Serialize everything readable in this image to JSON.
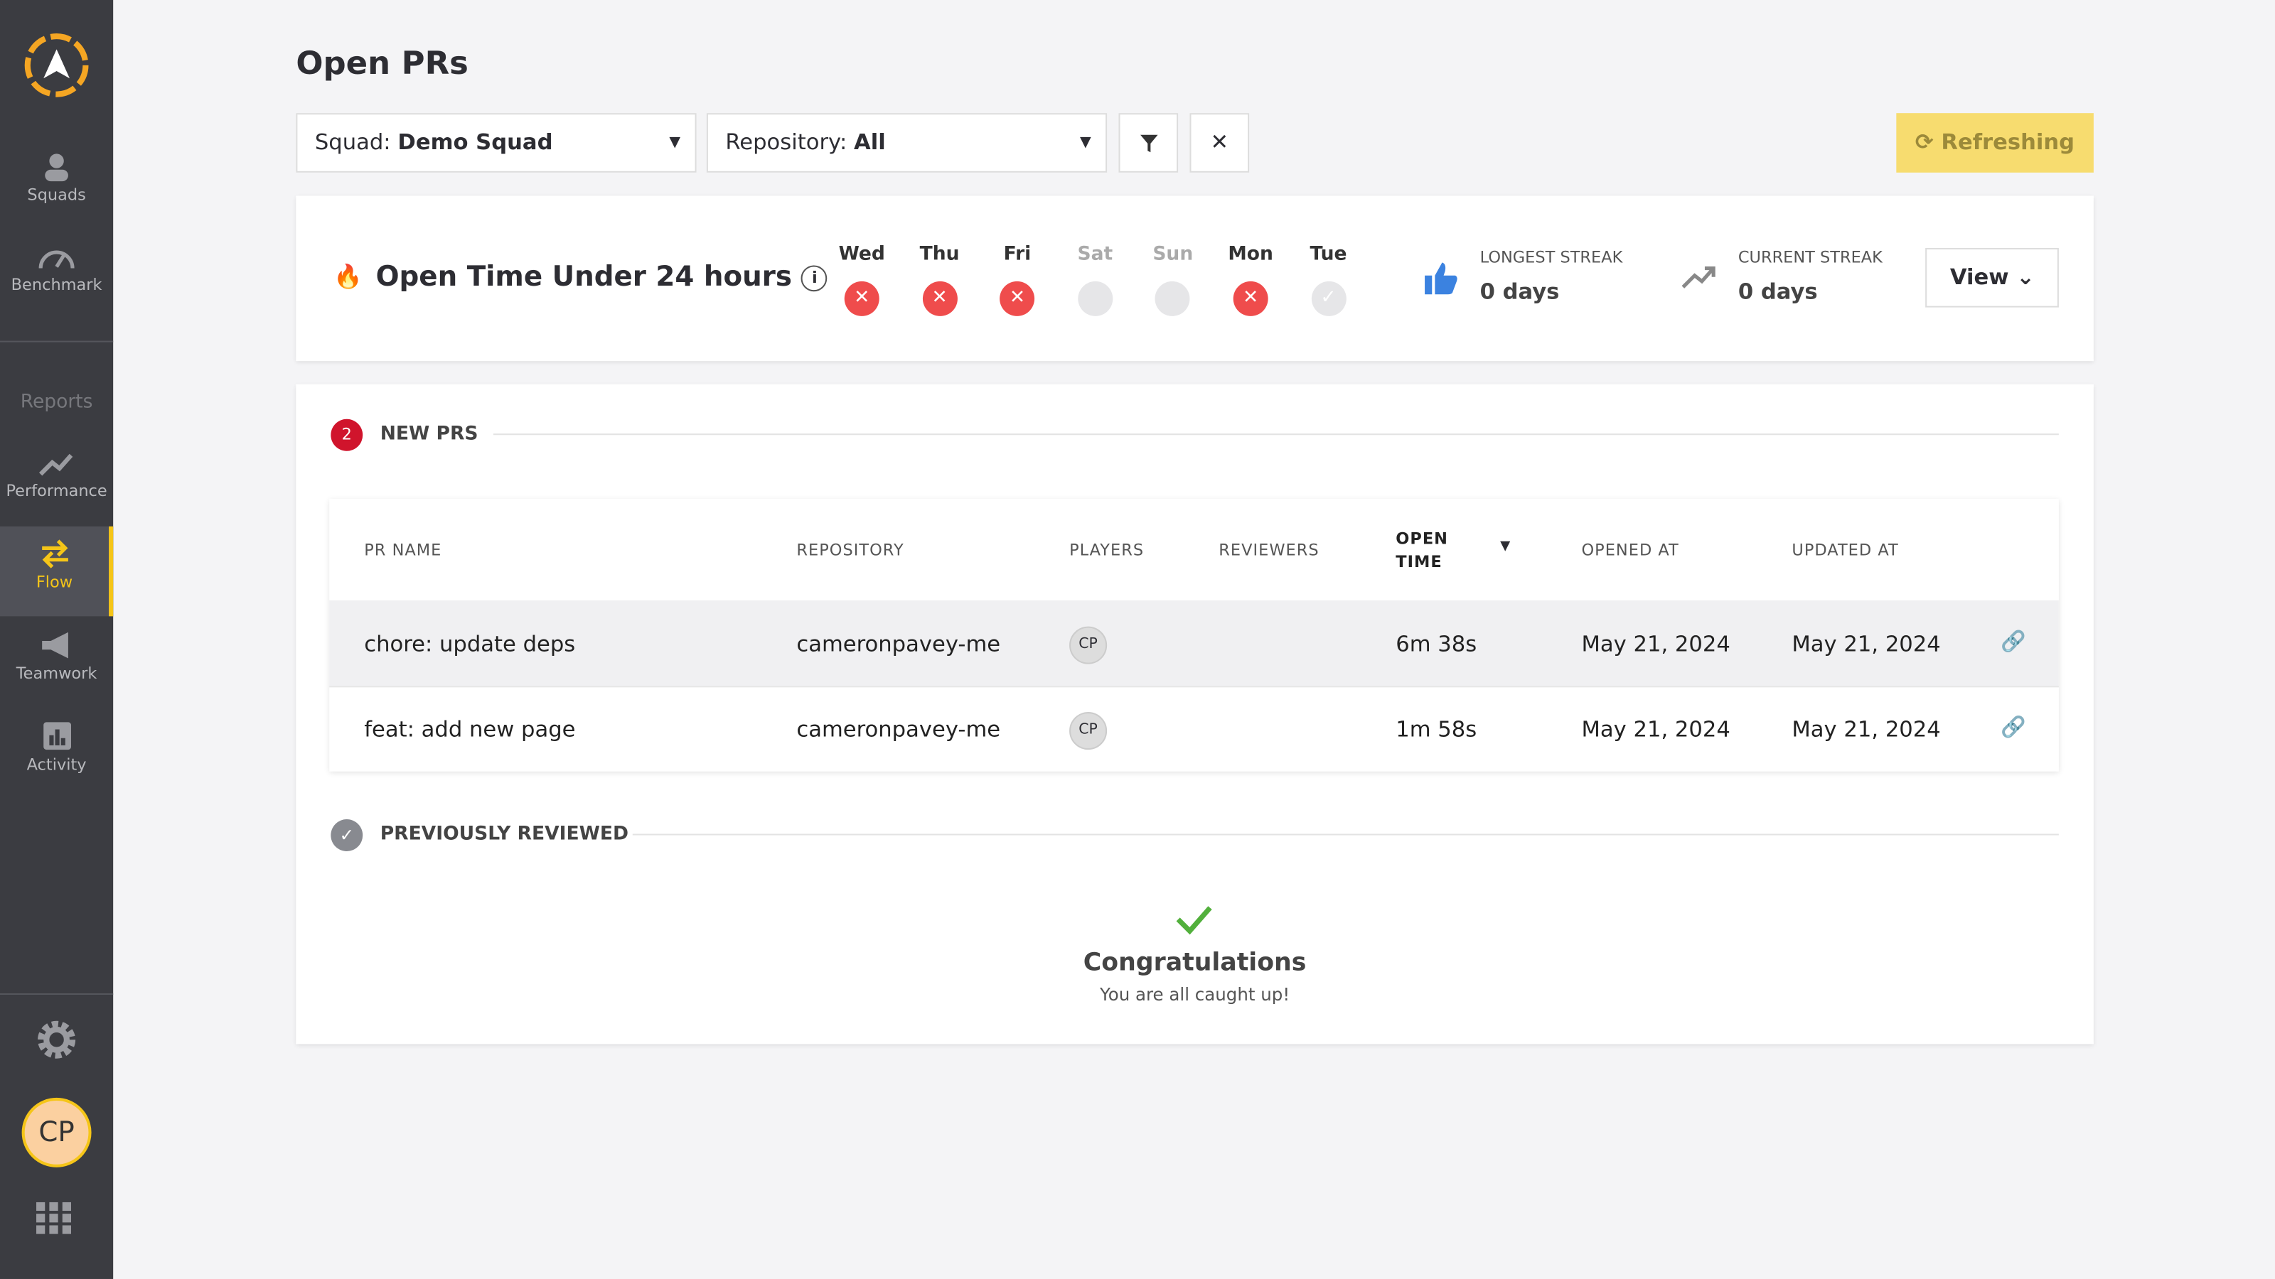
{
  "sidebar": {
    "nav": [
      "Squads",
      "Benchmark"
    ],
    "section": "Reports",
    "reports": [
      "Performance",
      "Flow",
      "Teamwork",
      "Activity"
    ],
    "active": "Flow",
    "avatar": "CP"
  },
  "header": {
    "title": "Open PRs"
  },
  "filters": {
    "squad_label": "Squad:",
    "squad_value": "Demo Squad",
    "repo_label": "Repository:",
    "repo_value": "All",
    "refresh": "Refreshing"
  },
  "streak": {
    "title": "Open Time Under 24 hours",
    "days": [
      {
        "day": "Wed",
        "status": "fail"
      },
      {
        "day": "Thu",
        "status": "fail"
      },
      {
        "day": "Fri",
        "status": "fail"
      },
      {
        "day": "Sat",
        "status": "off"
      },
      {
        "day": "Sun",
        "status": "off"
      },
      {
        "day": "Mon",
        "status": "fail"
      },
      {
        "day": "Tue",
        "status": "pending"
      }
    ],
    "longest_label": "LONGEST STREAK",
    "longest_value": "0 days",
    "current_label": "CURRENT STREAK",
    "current_value": "0 days",
    "view": "View"
  },
  "new_prs": {
    "count": "2",
    "title": "NEW PRS",
    "columns": [
      "PR NAME",
      "REPOSITORY",
      "PLAYERS",
      "REVIEWERS",
      "OPEN TIME",
      "OPENED AT",
      "UPDATED AT"
    ],
    "rows": [
      [
        "chore: update deps",
        "cameronpavey-me",
        "CP",
        "",
        "6m 38s",
        "May 21, 2024",
        "May 21, 2024"
      ],
      [
        "feat: add new page",
        "cameronpavey-me",
        "CP",
        "",
        "1m 58s",
        "May 21, 2024",
        "May 21, 2024"
      ]
    ]
  },
  "reviewed": {
    "title": "PREVIOUSLY REVIEWED",
    "message": "Congratulations",
    "sub": "You are all caught up!"
  }
}
